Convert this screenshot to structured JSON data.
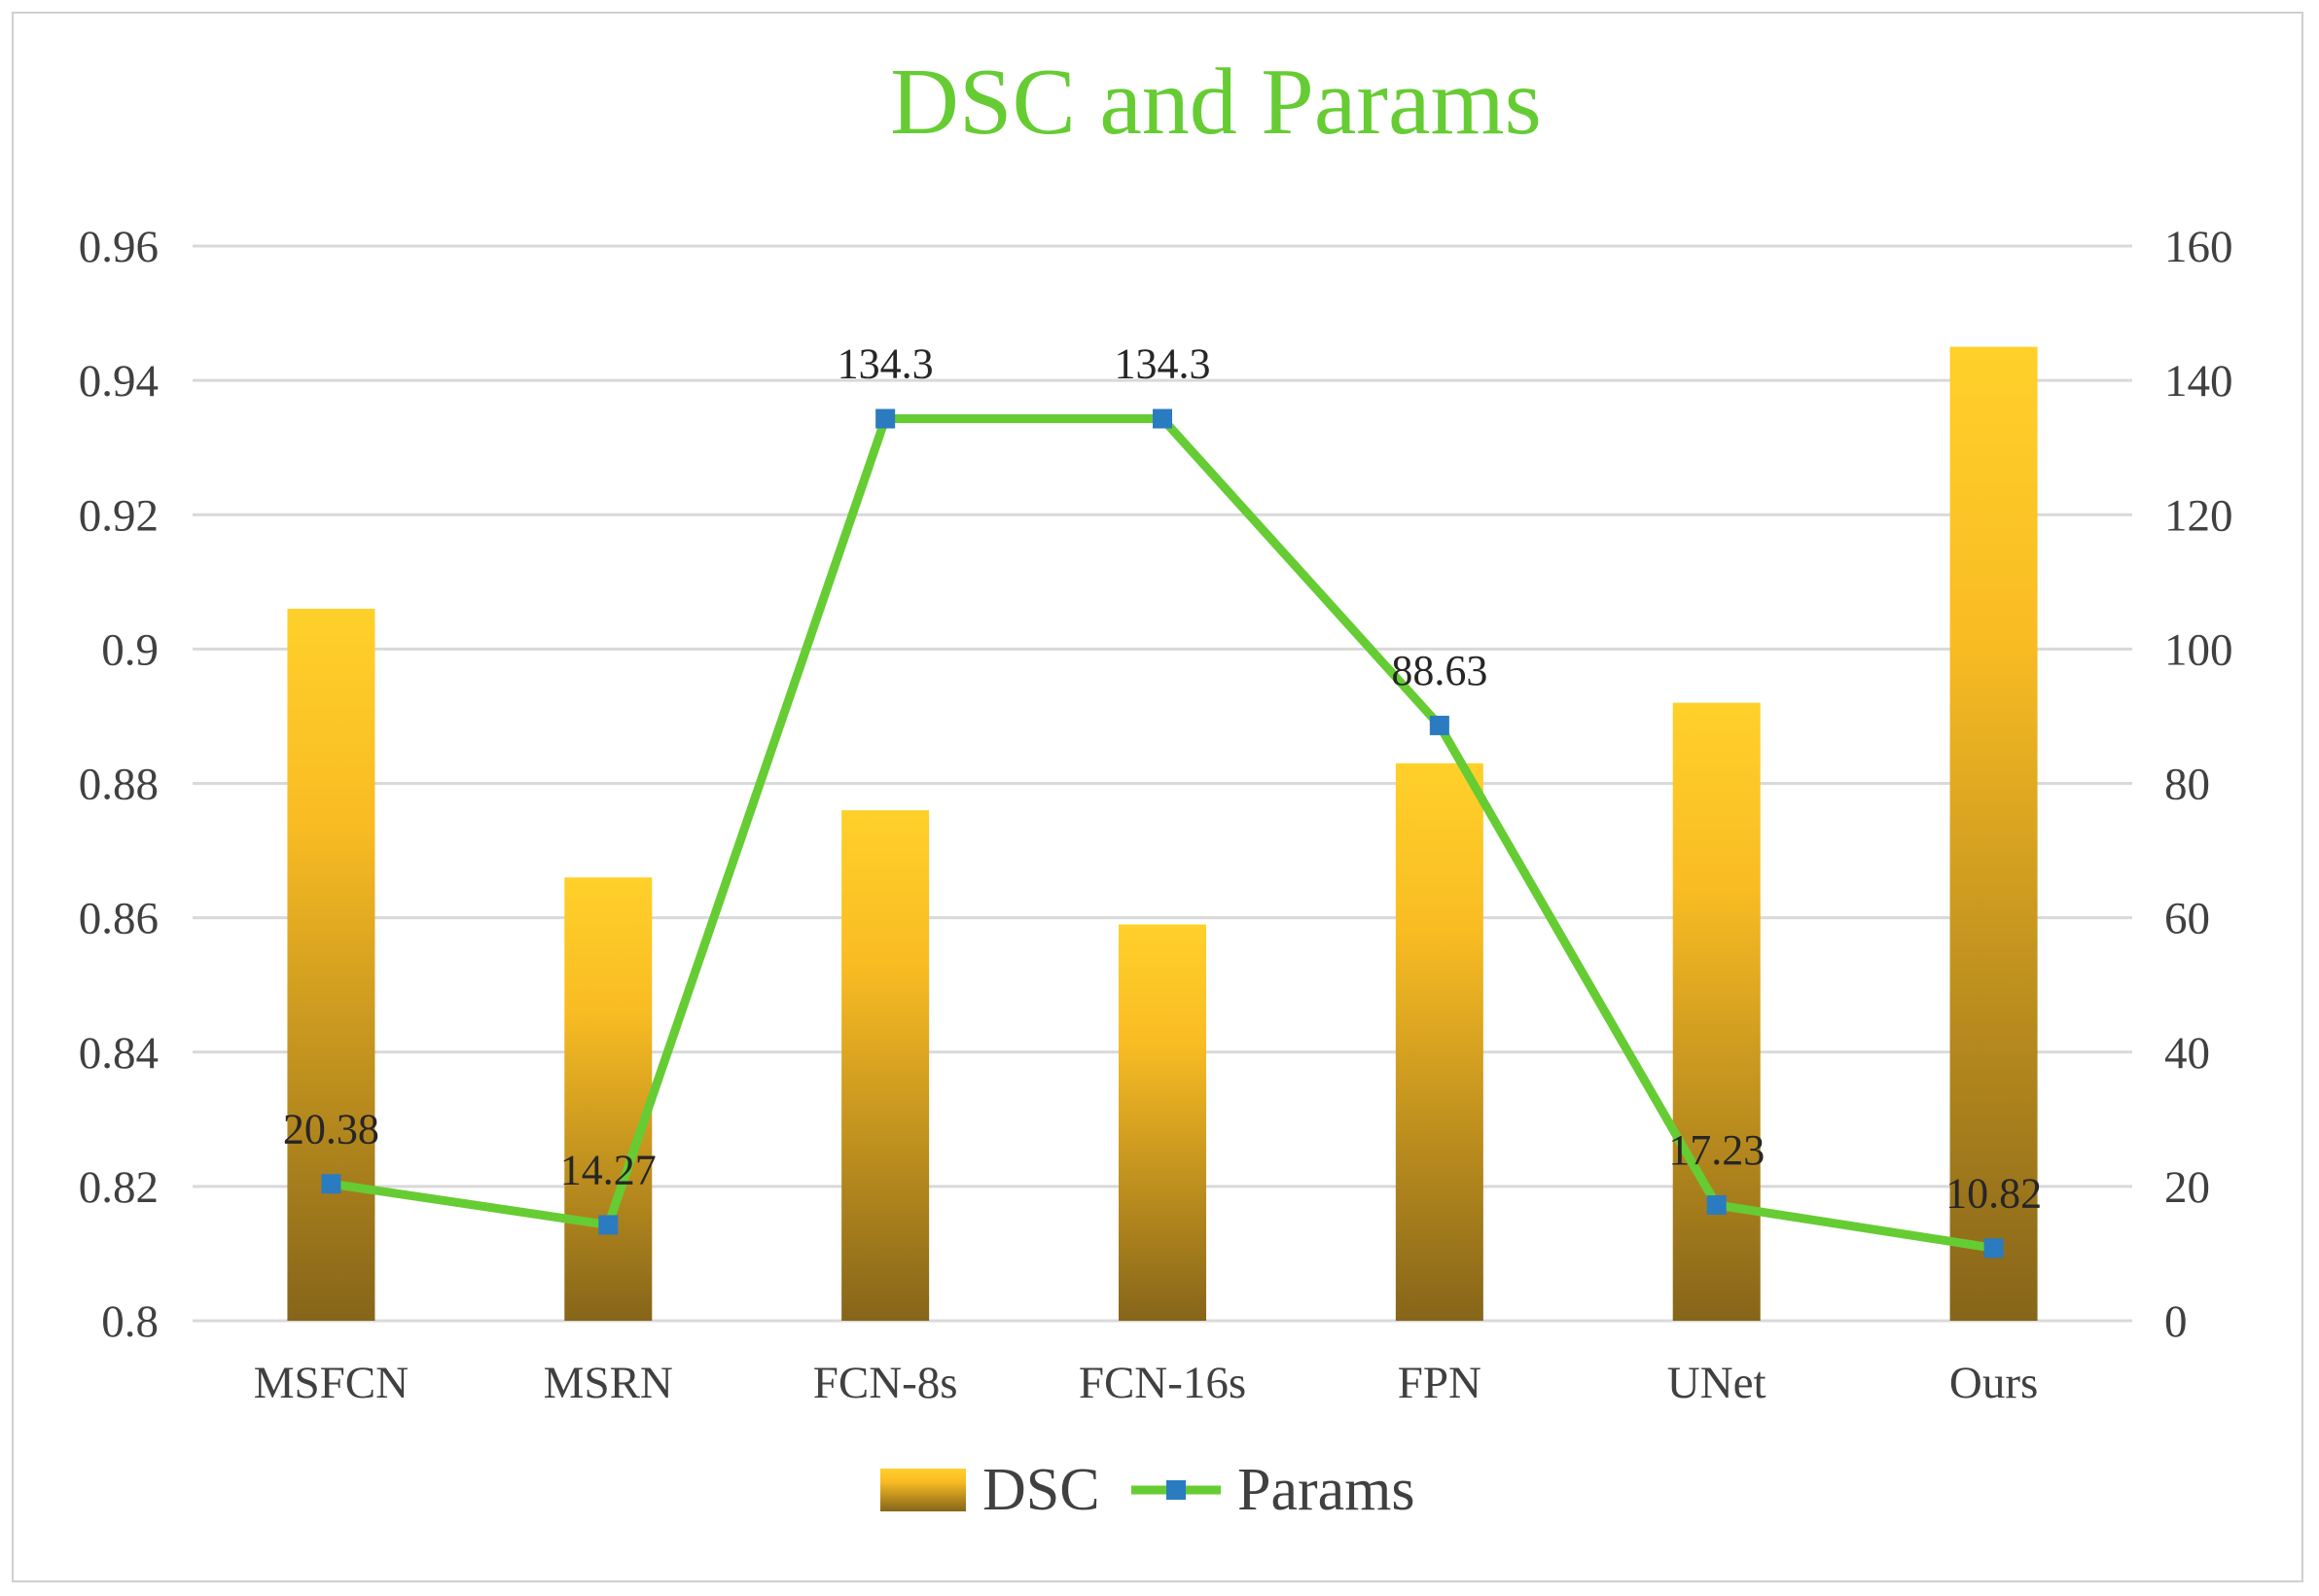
{
  "chart_data": {
    "type": "bar",
    "title": "DSC and Params",
    "categories": [
      "MSFCN",
      "MSRN",
      "FCN-8s",
      "FCN-16s",
      "FPN",
      "UNet",
      "Ours"
    ],
    "series": [
      {
        "name": "DSC",
        "kind": "bar",
        "axis": "left",
        "values": [
          0.906,
          0.866,
          0.876,
          0.859,
          0.883,
          0.892,
          0.945
        ],
        "color_top": "#FFD02A",
        "color_bottom": "#86651A"
      },
      {
        "name": "Params",
        "kind": "line",
        "axis": "right",
        "values": [
          20.38,
          14.27,
          134.3,
          134.3,
          88.63,
          17.23,
          10.82
        ],
        "data_labels": [
          "20.38",
          "14.27",
          "134.3",
          "134.3",
          "88.63",
          "17.23",
          "10.82"
        ],
        "line_color": "#66CC33",
        "marker_color": "#2B7BC0"
      }
    ],
    "y_left": {
      "lim": [
        0.8,
        0.96
      ],
      "ticks": [
        0.8,
        0.82,
        0.84,
        0.86,
        0.88,
        0.9,
        0.92,
        0.94,
        0.96
      ],
      "tick_labels": [
        "0.8",
        "0.82",
        "0.84",
        "0.86",
        "0.88",
        "0.9",
        "0.92",
        "0.94",
        "0.96"
      ]
    },
    "y_right": {
      "lim": [
        0,
        160
      ],
      "ticks": [
        0,
        20,
        40,
        60,
        80,
        100,
        120,
        140,
        160
      ],
      "tick_labels": [
        "0",
        "20",
        "40",
        "60",
        "80",
        "100",
        "120",
        "140",
        "160"
      ]
    },
    "grid": true,
    "legend_position": "bottom",
    "title_color": "#66CC33",
    "grid_color": "#d9d9d9",
    "text_color": "#404040"
  }
}
